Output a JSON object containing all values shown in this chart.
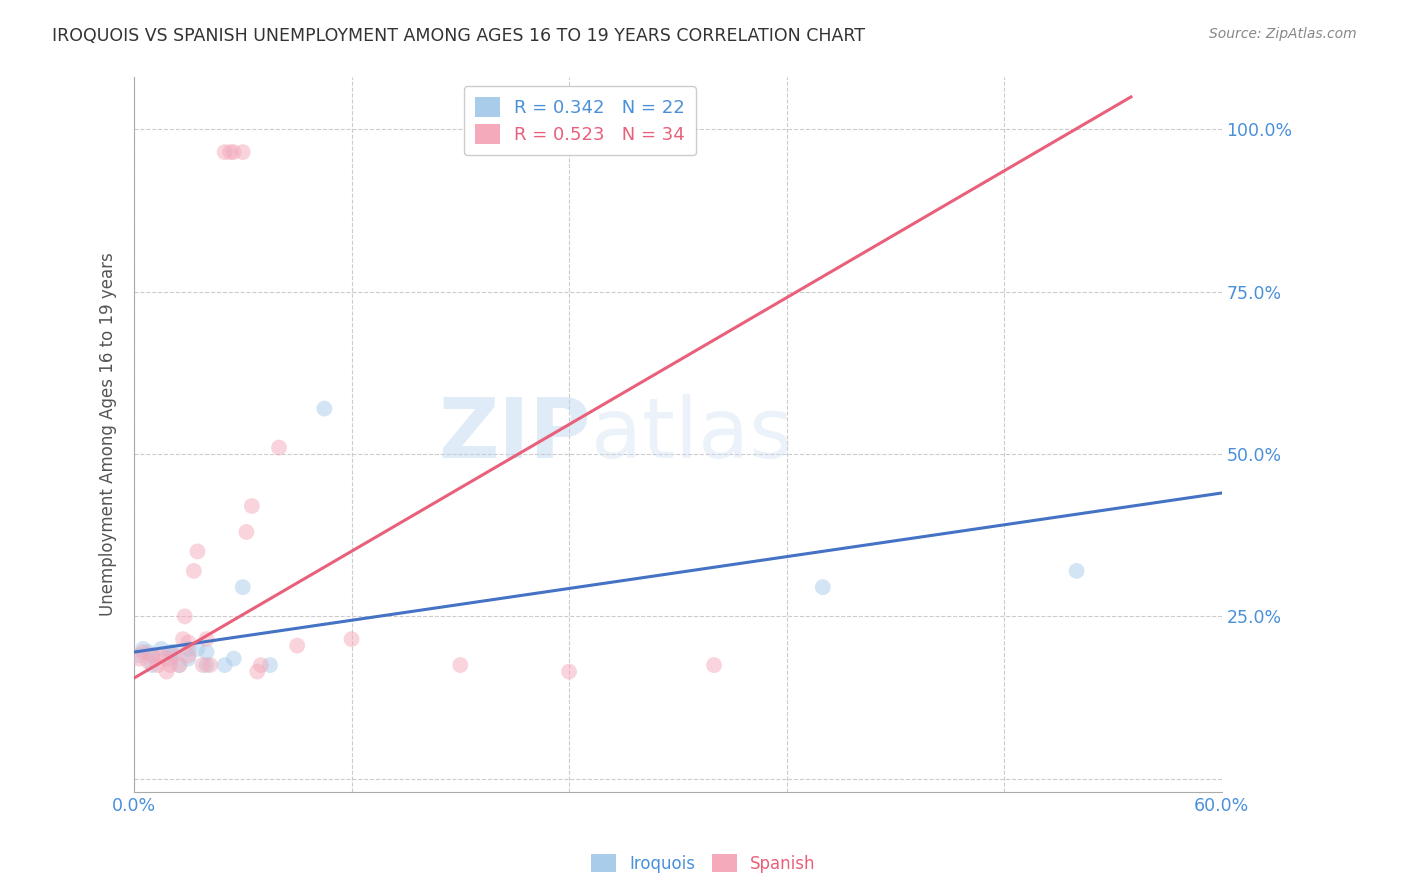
{
  "title": "IROQUOIS VS SPANISH UNEMPLOYMENT AMONG AGES 16 TO 19 YEARS CORRELATION CHART",
  "source": "Source: ZipAtlas.com",
  "ylabel": "Unemployment Among Ages 16 to 19 years",
  "xmin": 0.0,
  "xmax": 0.6,
  "ymin": -0.02,
  "ymax": 1.08,
  "xticks": [
    0.0,
    0.12,
    0.24,
    0.36,
    0.48,
    0.6
  ],
  "xtick_labels": [
    "0.0%",
    "",
    "",
    "",
    "",
    "60.0%"
  ],
  "yticks": [
    0.0,
    0.25,
    0.5,
    0.75,
    1.0
  ],
  "ytick_labels": [
    "",
    "25.0%",
    "50.0%",
    "75.0%",
    "100.0%"
  ],
  "legend_iroquois_R": "0.342",
  "legend_iroquois_N": "22",
  "legend_spanish_R": "0.523",
  "legend_spanish_N": "34",
  "iroquois_color": "#A8CCEA",
  "spanish_color": "#F4AABB",
  "iroquois_line_color": "#4472C4",
  "spanish_line_color": "#E8607A",
  "watermark_zip": "ZIP",
  "watermark_atlas": "atlas",
  "title_color": "#333333",
  "axis_label_color": "#555555",
  "iroquois_x": [
    0.003,
    0.005,
    0.008,
    0.01,
    0.01,
    0.015,
    0.02,
    0.02,
    0.022,
    0.025,
    0.03,
    0.03,
    0.035,
    0.04,
    0.04,
    0.05,
    0.055,
    0.06,
    0.075,
    0.105,
    0.38,
    0.52
  ],
  "iroquois_y": [
    0.19,
    0.2,
    0.195,
    0.175,
    0.19,
    0.2,
    0.195,
    0.185,
    0.195,
    0.175,
    0.185,
    0.2,
    0.2,
    0.175,
    0.195,
    0.175,
    0.185,
    0.295,
    0.175,
    0.57,
    0.295,
    0.32
  ],
  "spanish_x": [
    0.003,
    0.005,
    0.008,
    0.01,
    0.013,
    0.015,
    0.017,
    0.018,
    0.02,
    0.022,
    0.025,
    0.027,
    0.028,
    0.03,
    0.03,
    0.033,
    0.035,
    0.038,
    0.04,
    0.042,
    0.05,
    0.053,
    0.055,
    0.06,
    0.062,
    0.065,
    0.068,
    0.07,
    0.08,
    0.09,
    0.12,
    0.18,
    0.24,
    0.32
  ],
  "spanish_y": [
    0.185,
    0.195,
    0.18,
    0.19,
    0.175,
    0.19,
    0.185,
    0.165,
    0.175,
    0.19,
    0.175,
    0.215,
    0.25,
    0.19,
    0.21,
    0.32,
    0.35,
    0.175,
    0.215,
    0.175,
    0.965,
    0.965,
    0.965,
    0.965,
    0.38,
    0.42,
    0.165,
    0.175,
    0.51,
    0.205,
    0.215,
    0.175,
    0.165,
    0.175
  ],
  "iroquois_line_x": [
    0.0,
    0.6
  ],
  "iroquois_line_y": [
    0.195,
    0.44
  ],
  "spanish_line_x": [
    0.0,
    0.55
  ],
  "spanish_line_y": [
    0.155,
    1.05
  ],
  "background_color": "#FFFFFF",
  "grid_color": "#CCCCCC",
  "marker_size": 130,
  "marker_alpha": 0.5
}
